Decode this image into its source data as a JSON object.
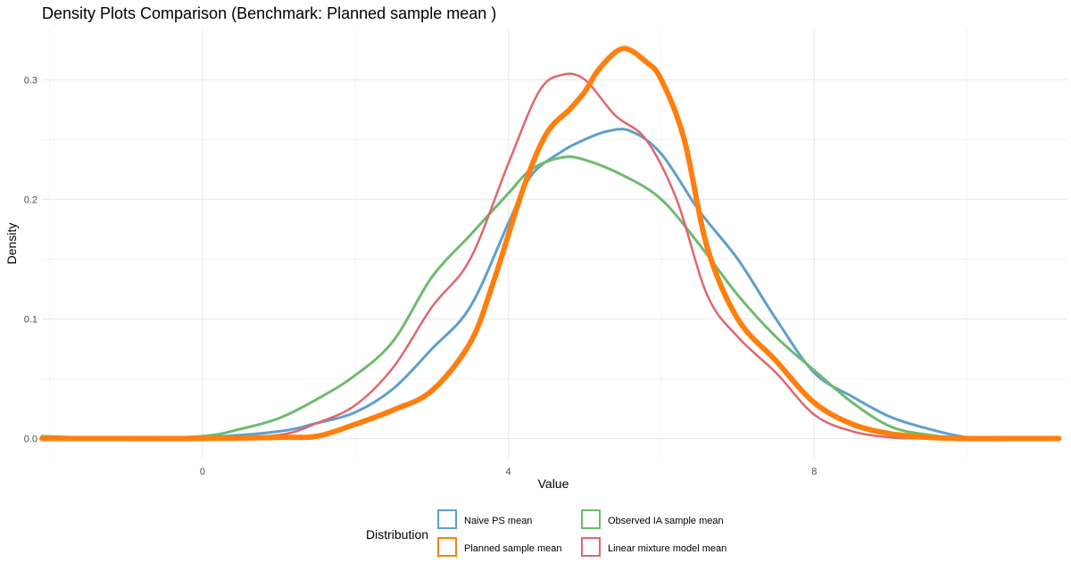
{
  "chart_data": {
    "type": "line",
    "title": "Density Plots Comparison (Benchmark: Planned sample mean )",
    "xlabel": "Value",
    "ylabel": "Density",
    "xlim": [
      -2.1,
      11.3
    ],
    "ylim": [
      -0.016,
      0.342
    ],
    "x_ticks": [
      0,
      4,
      8
    ],
    "x_tick_labels": [
      "0",
      "4",
      "8"
    ],
    "y_ticks": [
      0.0,
      0.1,
      0.2,
      0.3
    ],
    "y_tick_labels": [
      "0.0",
      "0.1",
      "0.2",
      "0.3"
    ],
    "grid": true,
    "legend": {
      "title": "Distribution",
      "position": "bottom"
    },
    "series": [
      {
        "name": "Naive PS mean",
        "color": "#5f9fcb",
        "width": 3,
        "x": [
          -2.1,
          -1.0,
          0.0,
          1.0,
          1.5,
          2.0,
          2.5,
          3.0,
          3.5,
          4.0,
          4.3,
          4.7,
          5.0,
          5.3,
          5.6,
          6.0,
          6.5,
          7.0,
          7.5,
          8.0,
          8.5,
          9.0,
          9.5,
          10.0,
          10.5,
          11.2
        ],
        "y": [
          0.0,
          0.0,
          0.001,
          0.006,
          0.013,
          0.022,
          0.042,
          0.075,
          0.11,
          0.18,
          0.22,
          0.24,
          0.25,
          0.257,
          0.257,
          0.238,
          0.19,
          0.15,
          0.1,
          0.055,
          0.035,
          0.018,
          0.008,
          0.001,
          0.0,
          0.0
        ]
      },
      {
        "name": "Observed IA sample mean",
        "color": "#6dbb6d",
        "width": 3,
        "x": [
          -2.1,
          -1.0,
          0.0,
          0.5,
          1.0,
          1.5,
          2.0,
          2.5,
          3.0,
          3.5,
          4.0,
          4.3,
          4.7,
          5.0,
          5.5,
          6.0,
          6.5,
          7.0,
          7.5,
          8.0,
          8.5,
          9.0,
          9.5,
          10.0,
          10.5,
          11.2
        ],
        "y": [
          0.002,
          0.0,
          0.002,
          0.008,
          0.017,
          0.033,
          0.053,
          0.082,
          0.135,
          0.17,
          0.205,
          0.225,
          0.235,
          0.233,
          0.22,
          0.2,
          0.162,
          0.12,
          0.085,
          0.057,
          0.03,
          0.01,
          0.003,
          0.0,
          0.0,
          0.0
        ]
      },
      {
        "name": "Linear mixture model mean",
        "color": "#e0666e",
        "width": 2.5,
        "x": [
          -2.1,
          -1.0,
          0.0,
          1.0,
          1.5,
          2.0,
          2.5,
          3.0,
          3.5,
          4.0,
          4.4,
          4.7,
          5.0,
          5.4,
          5.8,
          6.2,
          6.6,
          7.0,
          7.5,
          8.0,
          8.5,
          9.0,
          9.5,
          10.0,
          11.2
        ],
        "y": [
          0.0,
          0.0,
          0.0,
          0.003,
          0.013,
          0.028,
          0.06,
          0.11,
          0.15,
          0.23,
          0.29,
          0.304,
          0.3,
          0.27,
          0.25,
          0.2,
          0.12,
          0.085,
          0.055,
          0.02,
          0.006,
          0.001,
          0.0,
          0.0,
          0.0
        ]
      },
      {
        "name": "Planned sample mean",
        "color": "#ff7f0e",
        "width": 6,
        "x": [
          -2.1,
          -1.0,
          0.0,
          1.0,
          1.5,
          2.0,
          2.5,
          3.0,
          3.5,
          3.8,
          4.2,
          4.5,
          4.8,
          5.0,
          5.2,
          5.5,
          5.8,
          6.0,
          6.3,
          6.6,
          7.0,
          7.5,
          8.0,
          8.5,
          9.0,
          9.5,
          10.0,
          10.5,
          11.2
        ],
        "y": [
          0.0,
          0.0,
          0.0,
          0.001,
          0.002,
          0.012,
          0.024,
          0.04,
          0.08,
          0.13,
          0.21,
          0.255,
          0.275,
          0.29,
          0.31,
          0.326,
          0.315,
          0.3,
          0.25,
          0.16,
          0.1,
          0.065,
          0.03,
          0.012,
          0.004,
          0.001,
          0.0,
          0.0,
          0.0
        ]
      }
    ]
  },
  "legend_items": [
    {
      "label": "Naive PS mean",
      "color": "#5f9fcb",
      "width": 2
    },
    {
      "label": "Observed IA sample mean",
      "color": "#6dbb6d",
      "width": 2
    },
    {
      "label": "Planned sample mean",
      "color": "#ff7f0e",
      "width": 2
    },
    {
      "label": "Linear mixture model mean",
      "color": "#e0666e",
      "width": 2
    }
  ]
}
